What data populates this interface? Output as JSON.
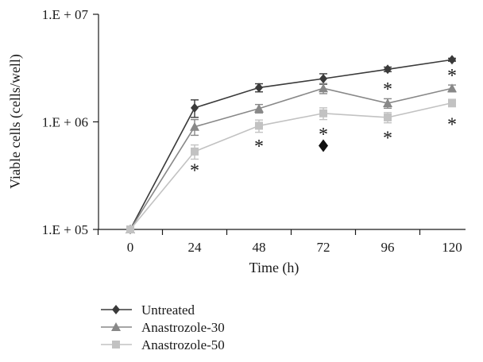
{
  "chart_data": {
    "type": "line",
    "x": [
      0,
      24,
      48,
      72,
      96,
      120
    ],
    "xlabel": "Time (h)",
    "ylabel": "Viable cells (cells/well)",
    "yscale": "log",
    "ylim": [
      100000,
      10000000
    ],
    "y_ticks": [
      100000,
      1000000,
      10000000
    ],
    "y_tick_labels": [
      "1.E + 05",
      "1.E + 06",
      "1.E + 07"
    ],
    "x_tick_labels": [
      "0",
      "24",
      "48",
      "72",
      "96",
      "120"
    ],
    "grid": false,
    "legend_position": "bottom-left",
    "series": [
      {
        "name": "Untreated",
        "color": "#3a3a3a",
        "marker": "diamond",
        "values": [
          100000,
          1350000,
          2080000,
          2520000,
          3080000,
          3780000
        ],
        "error": [
          0,
          250000,
          180000,
          280000,
          150000,
          120000
        ]
      },
      {
        "name": "Anastrozole-30",
        "color": "#888888",
        "marker": "triangle",
        "values": [
          100000,
          900000,
          1330000,
          2050000,
          1490000,
          2050000
        ],
        "error": [
          0,
          150000,
          120000,
          220000,
          150000,
          150000
        ]
      },
      {
        "name": "Anastrozole-50",
        "color": "#c2c2c2",
        "marker": "square",
        "values": [
          100000,
          530000,
          920000,
          1200000,
          1100000,
          1500000
        ],
        "error": [
          0,
          80000,
          120000,
          150000,
          120000,
          120000
        ]
      }
    ],
    "annotations": [
      {
        "text": "*",
        "x": 24,
        "y": 380000
      },
      {
        "text": "*",
        "x": 48,
        "y": 640000
      },
      {
        "text": "*",
        "x": 72,
        "y": 820000
      },
      {
        "text": "*",
        "x": 96,
        "y": 2160000
      },
      {
        "text": "*",
        "x": 96,
        "y": 760000
      },
      {
        "text": "*",
        "x": 120,
        "y": 2900000
      },
      {
        "text": "*",
        "x": 120,
        "y": 1020000
      }
    ],
    "extra_markers": [
      {
        "shape": "diamond",
        "x": 72,
        "y": 600000,
        "color": "#111111"
      }
    ]
  }
}
